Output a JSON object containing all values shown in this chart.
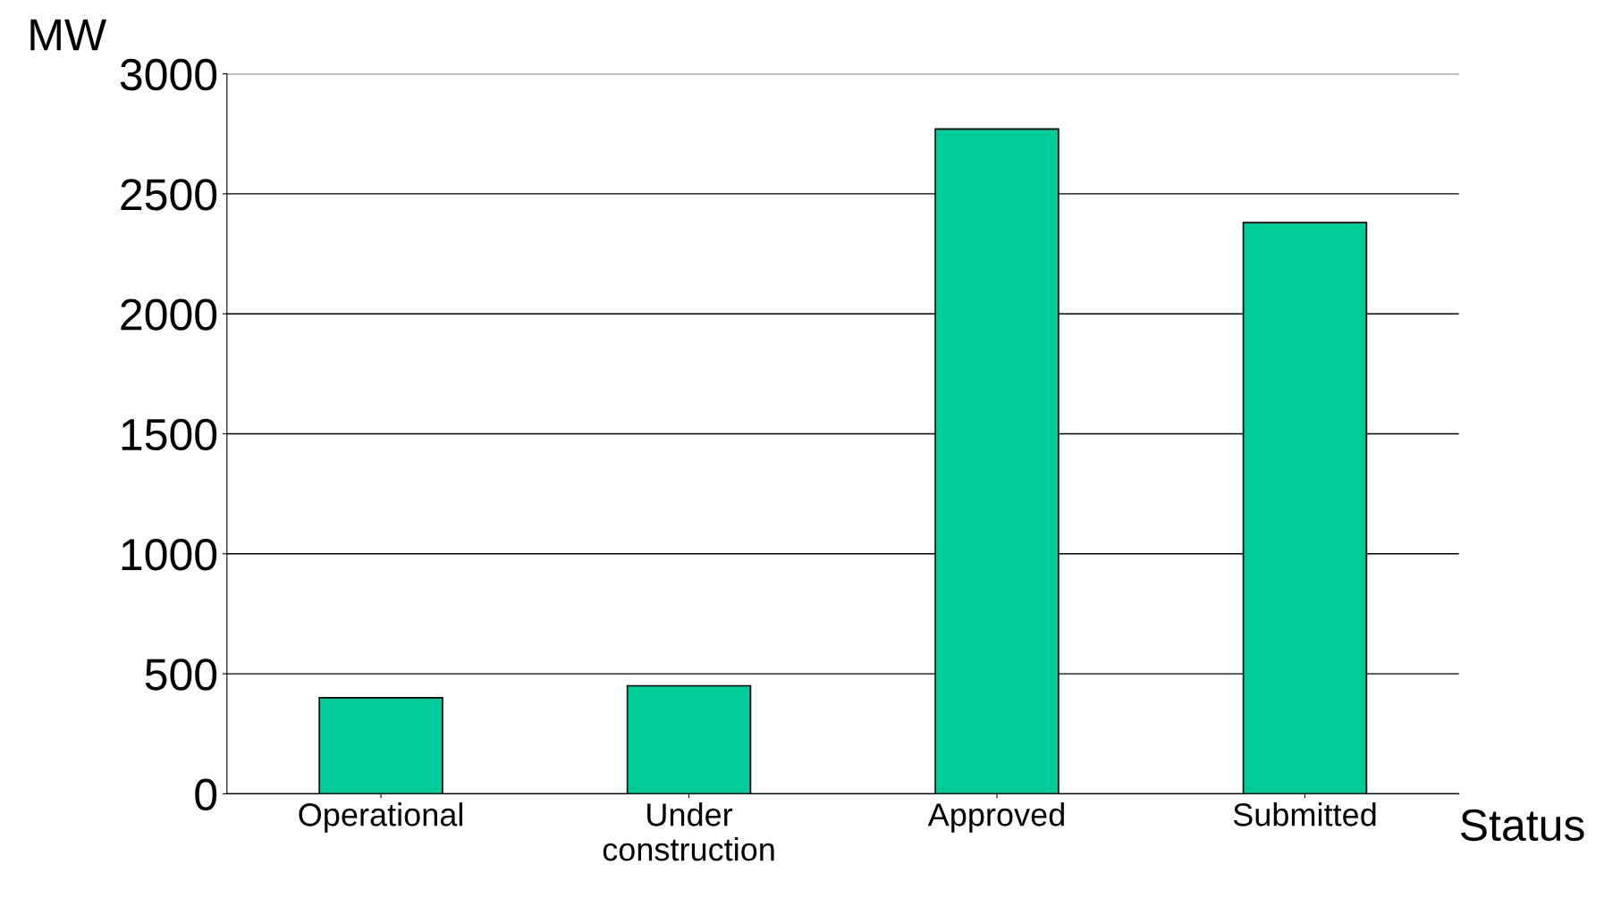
{
  "chart_data": {
    "type": "bar",
    "ylabel": "MW",
    "xlabel": "Status",
    "categories": [
      "Operational",
      "Under\nconstruction",
      "Approved",
      "Submitted"
    ],
    "values": [
      400,
      450,
      2770,
      2380
    ],
    "color": "#00cc99",
    "ylim": [
      0,
      3000
    ],
    "yticks": [
      0,
      500,
      1000,
      1500,
      2000,
      2500,
      3000
    ],
    "grid": "y"
  }
}
